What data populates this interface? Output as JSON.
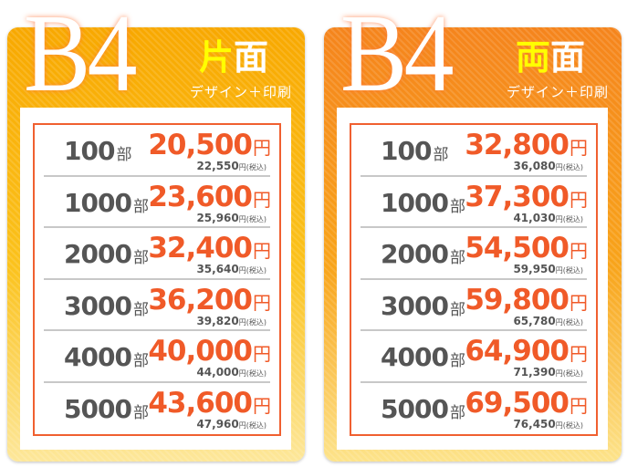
{
  "cards": [
    {
      "size": "B4",
      "title_accent": "片",
      "title_rest": "面",
      "subtitle": "デザイン＋印刷",
      "rows": [
        {
          "qty": "100",
          "unit": "部",
          "price": "20,500",
          "yen": "円",
          "tax_price": "22,550",
          "tax_label": "円(税込)"
        },
        {
          "qty": "1000",
          "unit": "部",
          "price": "23,600",
          "yen": "円",
          "tax_price": "25,960",
          "tax_label": "円(税込)"
        },
        {
          "qty": "2000",
          "unit": "部",
          "price": "32,400",
          "yen": "円",
          "tax_price": "35,640",
          "tax_label": "円(税込)"
        },
        {
          "qty": "3000",
          "unit": "部",
          "price": "36,200",
          "yen": "円",
          "tax_price": "39,820",
          "tax_label": "円(税込)"
        },
        {
          "qty": "4000",
          "unit": "部",
          "price": "40,000",
          "yen": "円",
          "tax_price": "44,000",
          "tax_label": "円(税込)"
        },
        {
          "qty": "5000",
          "unit": "部",
          "price": "43,600",
          "yen": "円",
          "tax_price": "47,960",
          "tax_label": "円(税込)"
        }
      ]
    },
    {
      "size": "B4",
      "title_accent": "両",
      "title_rest": "面",
      "subtitle": "デザイン＋印刷",
      "rows": [
        {
          "qty": "100",
          "unit": "部",
          "price": "32,800",
          "yen": "円",
          "tax_price": "36,080",
          "tax_label": "円(税込)"
        },
        {
          "qty": "1000",
          "unit": "部",
          "price": "37,300",
          "yen": "円",
          "tax_price": "41,030",
          "tax_label": "円(税込)"
        },
        {
          "qty": "2000",
          "unit": "部",
          "price": "54,500",
          "yen": "円",
          "tax_price": "59,950",
          "tax_label": "円(税込)"
        },
        {
          "qty": "3000",
          "unit": "部",
          "price": "59,800",
          "yen": "円",
          "tax_price": "65,780",
          "tax_label": "円(税込)"
        },
        {
          "qty": "4000",
          "unit": "部",
          "price": "64,900",
          "yen": "円",
          "tax_price": "71,390",
          "tax_label": "円(税込)"
        },
        {
          "qty": "5000",
          "unit": "部",
          "price": "69,500",
          "yen": "円",
          "tax_price": "76,450",
          "tax_label": "円(税込)"
        }
      ]
    }
  ],
  "colors": {
    "price": "#f05a28",
    "frame": "#f06030",
    "card1_top": "#f8a800",
    "card2_top": "#f5841c",
    "accent_title": "#ffff00"
  }
}
